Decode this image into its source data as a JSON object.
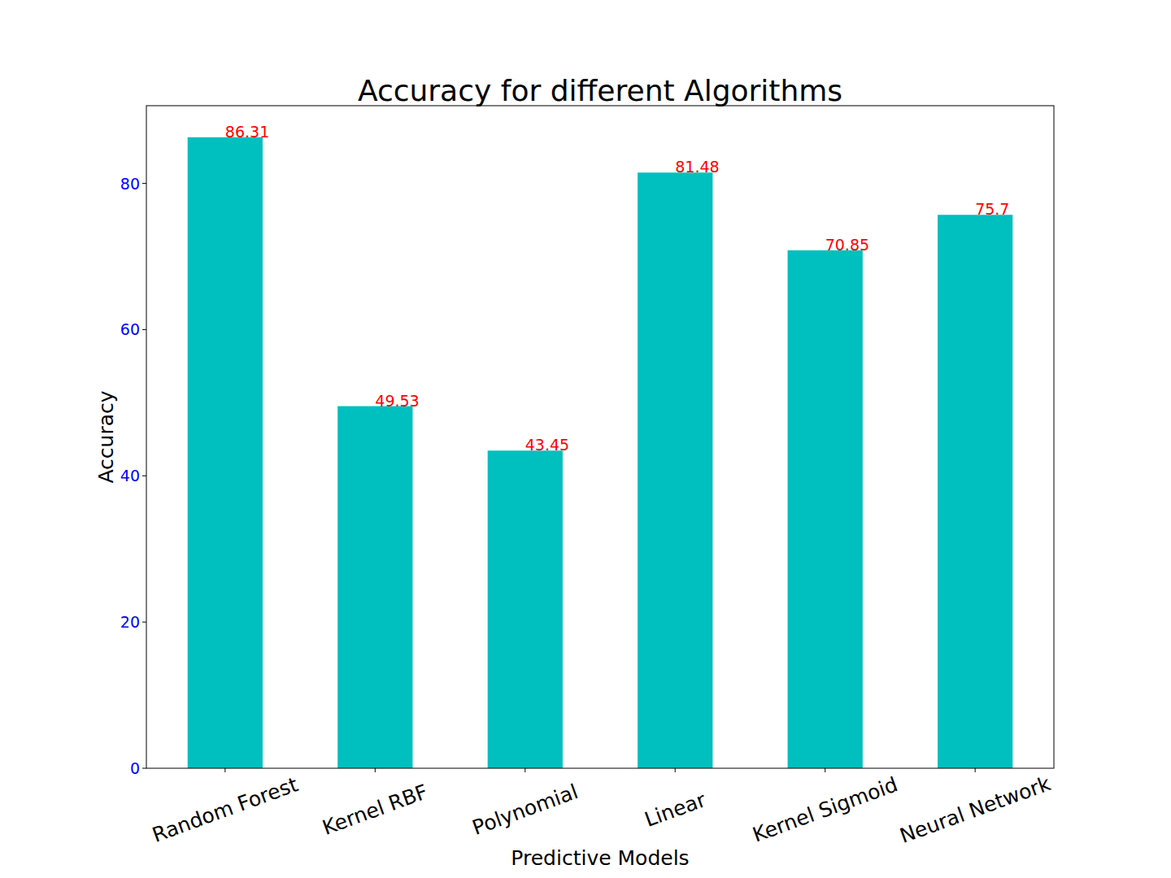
{
  "chart_data": {
    "type": "bar",
    "title": "Accuracy for different Algorithms",
    "x_label": "Predictive Models",
    "y_label": "Accuracy",
    "categories": [
      "Random Forest",
      "Kernel RBF",
      "Polynomial",
      "Linear",
      "Kernel Sigmoid",
      "Neural Network"
    ],
    "values": [
      86.31,
      49.53,
      43.45,
      81.48,
      70.85,
      75.7
    ],
    "color": "#00bfbf",
    "ylim": [
      0,
      90.63
    ],
    "yticks": [
      0,
      20,
      40,
      60,
      80
    ],
    "grid": false,
    "data_labels": true
  }
}
